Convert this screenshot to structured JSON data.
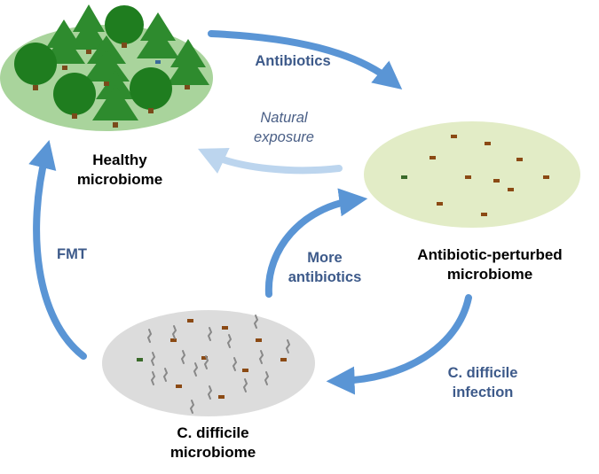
{
  "colors": {
    "healthy_fill": "#a9d49c",
    "perturbed_fill": "#e2ecc6",
    "cdiff_fill": "#dcdcdc",
    "tree_green": "#2e8b2e",
    "trunk_brown": "#7a4a1a",
    "bacterium_brown": "#8b4a14",
    "bacterium_green": "#3a6a2a",
    "arrow_blue": "#5a95d5",
    "arrow_light": "#bcd5ee",
    "edge_label": "#3d5a8a"
  },
  "nodes": {
    "healthy": {
      "label_line1": "Healthy",
      "label_line2": "microbiome"
    },
    "perturbed": {
      "label_line1": "Antibiotic-perturbed",
      "label_line2": "microbiome"
    },
    "cdiff": {
      "label_line1": "C. difficile",
      "label_line2": "microbiome"
    }
  },
  "edges": {
    "antibiotics": {
      "label": "Antibiotics"
    },
    "natural": {
      "label_line1": "Natural",
      "label_line2": "exposure"
    },
    "more": {
      "label_line1": "More",
      "label_line2": "antibiotics"
    },
    "infection": {
      "label_line1": "C. difficile",
      "label_line2": "infection"
    },
    "fmt": {
      "label": "FMT"
    }
  }
}
